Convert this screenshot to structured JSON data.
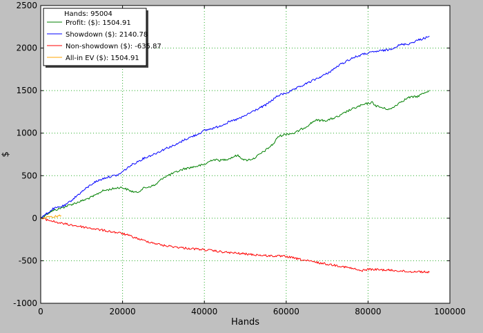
{
  "chart_data": {
    "type": "line",
    "title": "",
    "xlabel": "Hands",
    "ylabel": "$",
    "xlim": [
      0,
      100000
    ],
    "ylim": [
      -1000,
      2500
    ],
    "x_ticks": [
      0,
      20000,
      40000,
      60000,
      80000,
      100000
    ],
    "x_tick_labels": [
      "0",
      "20000",
      "40000",
      "60000",
      "80000",
      "100000"
    ],
    "y_ticks": [
      -1000,
      -500,
      0,
      500,
      1000,
      1500,
      2000,
      2500
    ],
    "y_tick_labels": [
      "-1000",
      "-500",
      "0",
      "500",
      "1000",
      "1500",
      "2000",
      "2500"
    ],
    "grid": true,
    "legend_position": "top-left",
    "legend_header": "Hands: 95004",
    "background_color": "#c0c0c0",
    "plot_background": "#ffffff",
    "grid_color": "#22aa22",
    "series": [
      {
        "name": "Profit: ($): 1504.91",
        "color": "#008000",
        "x": [
          0,
          2500,
          5000,
          8000,
          11000,
          13000,
          15000,
          17000,
          19000,
          20000,
          22000,
          23500,
          25000,
          28000,
          30000,
          33000,
          35000,
          37000,
          40000,
          42000,
          44000,
          46000,
          48000,
          50000,
          52000,
          55000,
          57000,
          58000,
          60000,
          62000,
          65000,
          67000,
          70000,
          73000,
          75000,
          78000,
          80000,
          81000,
          82000,
          84000,
          85500,
          88000,
          90000,
          92000,
          94000,
          95004
        ],
        "y": [
          0,
          80,
          120,
          170,
          220,
          260,
          320,
          340,
          360,
          360,
          320,
          300,
          350,
          390,
          480,
          540,
          580,
          600,
          630,
          690,
          680,
          700,
          740,
          680,
          700,
          800,
          880,
          960,
          990,
          1000,
          1080,
          1150,
          1150,
          1200,
          1260,
          1320,
          1350,
          1360,
          1320,
          1290,
          1280,
          1370,
          1420,
          1430,
          1480,
          1504.91
        ]
      },
      {
        "name": "Showdown ($): 2140.78",
        "color": "#0000ff",
        "x": [
          0,
          3000,
          6000,
          10000,
          13000,
          16000,
          19000,
          22000,
          25000,
          28000,
          31000,
          33000,
          35000,
          38000,
          40000,
          43000,
          46000,
          49000,
          52000,
          55000,
          58000,
          61000,
          64000,
          67000,
          70000,
          73000,
          76000,
          79000,
          82000,
          85000,
          88000,
          90000,
          92000,
          94000,
          95004
        ],
        "y": [
          0,
          110,
          150,
          310,
          420,
          480,
          510,
          620,
          700,
          760,
          830,
          860,
          920,
          980,
          1030,
          1070,
          1130,
          1180,
          1260,
          1330,
          1440,
          1490,
          1560,
          1630,
          1700,
          1800,
          1880,
          1930,
          1960,
          1980,
          2040,
          2050,
          2090,
          2120,
          2140.78
        ]
      },
      {
        "name": "Non-showdown ($): -635.87",
        "color": "#ff0000",
        "x": [
          0,
          5000,
          10000,
          15000,
          20000,
          25000,
          30000,
          35000,
          40000,
          45000,
          50000,
          55000,
          60000,
          65000,
          70000,
          73000,
          75000,
          77000,
          78000,
          80000,
          85000,
          88000,
          90000,
          92000,
          95004
        ],
        "y": [
          0,
          -60,
          -100,
          -140,
          -180,
          -260,
          -320,
          -350,
          -370,
          -400,
          -420,
          -440,
          -450,
          -500,
          -540,
          -560,
          -580,
          -600,
          -620,
          -600,
          -610,
          -620,
          -630,
          -625,
          -635.87
        ]
      },
      {
        "name": "All-in EV ($): 1504.91",
        "color": "#ffa500",
        "x": [
          0,
          5000
        ],
        "y": [
          0,
          30
        ]
      }
    ]
  }
}
